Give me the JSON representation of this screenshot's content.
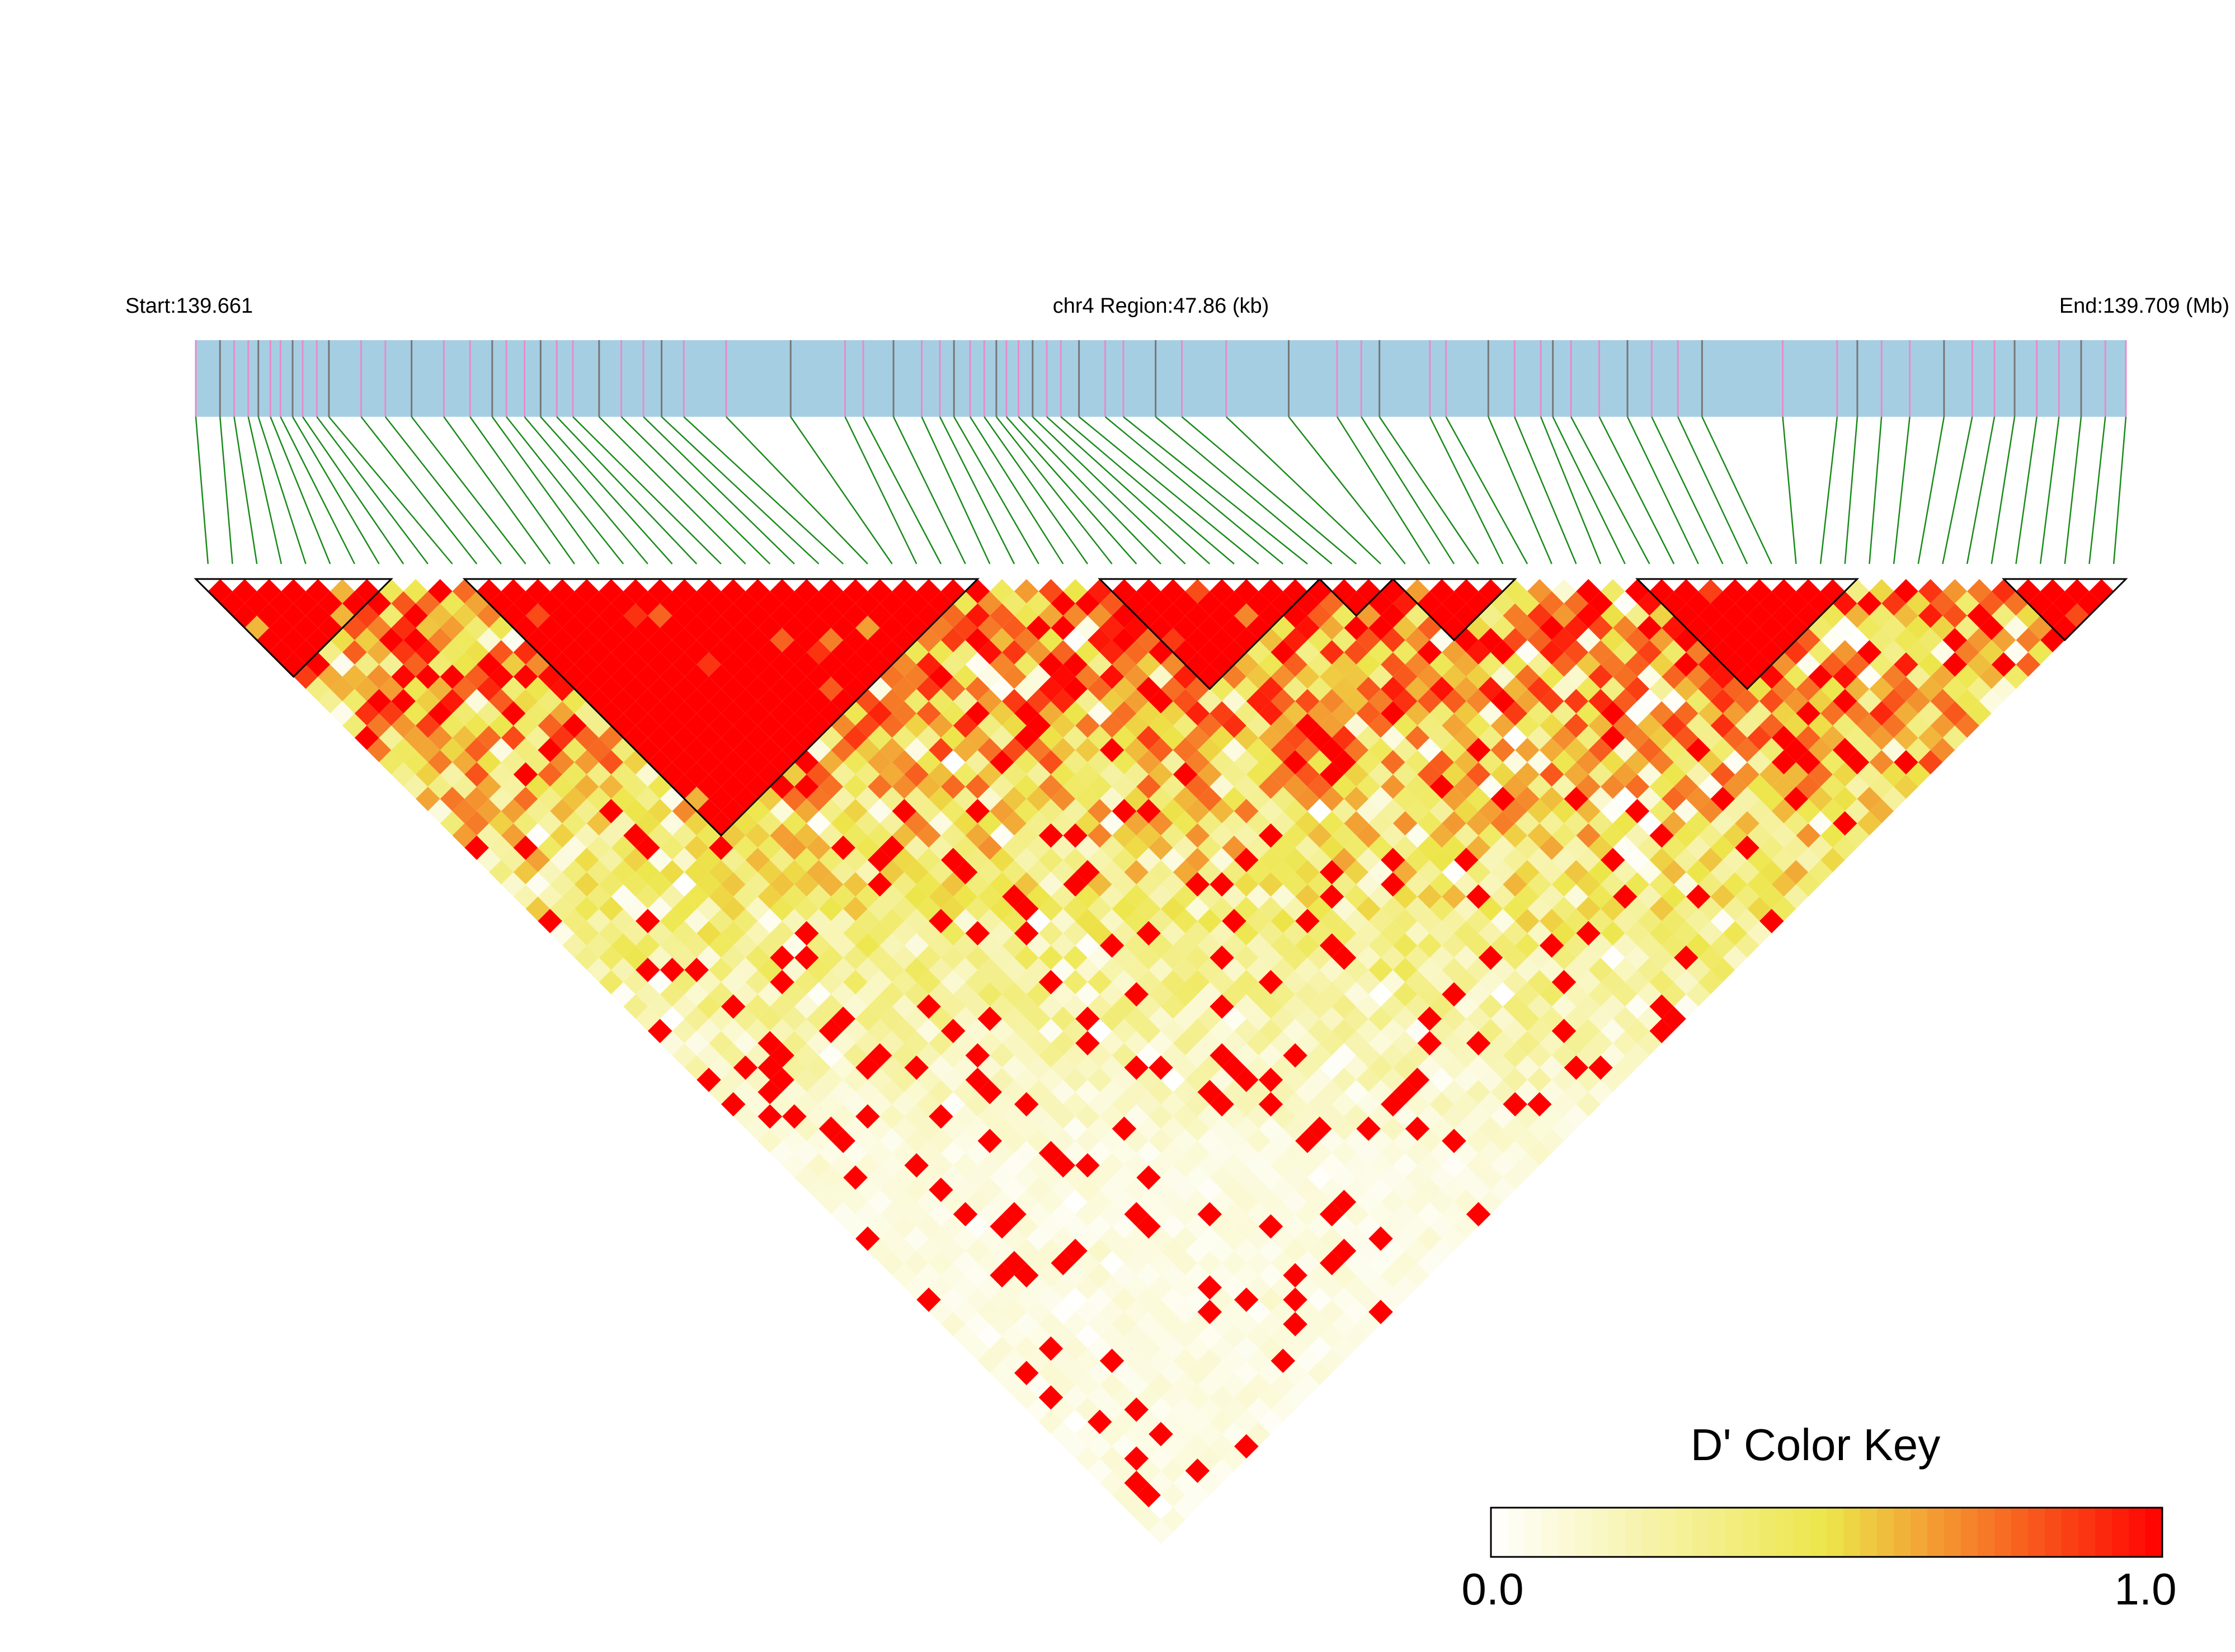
{
  "chart_data": {
    "type": "heatmap",
    "subtype": "linkage-disequilibrium-triangle",
    "metric": "D'",
    "header": {
      "start_label": "Start:139.661",
      "region_label": "chr4 Region:47.86 (kb)",
      "end_label": "End:139.709 (Mb)"
    },
    "region": {
      "chromosome": "chr4",
      "start_mb": 139.661,
      "end_mb": 139.709,
      "length_kb": 47.86
    },
    "snp_positions_kb": [
      0.0,
      0.6,
      0.95,
      1.3,
      1.55,
      1.85,
      2.1,
      2.4,
      2.65,
      3.0,
      3.3,
      4.1,
      4.7,
      5.35,
      6.15,
      6.8,
      7.35,
      7.7,
      8.15,
      8.55,
      8.95,
      9.35,
      10.0,
      10.55,
      11.1,
      11.55,
      12.1,
      13.15,
      14.75,
      16.1,
      16.55,
      17.3,
      18.0,
      18.45,
      18.8,
      19.2,
      19.55,
      19.85,
      20.1,
      20.4,
      20.75,
      21.1,
      21.45,
      21.9,
      22.55,
      23.0,
      23.8,
      24.45,
      25.55,
      27.1,
      28.3,
      28.9,
      29.35,
      30.6,
      31.0,
      32.05,
      32.7,
      33.35,
      33.65,
      34.1,
      34.8,
      35.5,
      36.1,
      36.75,
      37.35,
      39.35,
      40.7,
      41.2,
      41.8,
      42.5,
      43.35,
      44.05,
      44.6,
      45.1,
      45.65,
      46.2,
      46.75,
      47.35,
      47.86
    ],
    "ld_blocks": [
      {
        "first": 0,
        "last": 7
      },
      {
        "first": 11,
        "last": 31
      },
      {
        "first": 37,
        "last": 45
      },
      {
        "first": 46,
        "last": 48
      },
      {
        "first": 49,
        "last": 53
      },
      {
        "first": 59,
        "last": 67
      },
      {
        "first": 74,
        "last": 78
      }
    ],
    "legend": {
      "title": "D' Color Key",
      "min_label": "0.0",
      "max_label": "1.0",
      "range": [
        0,
        1
      ],
      "placement": "bottom-right"
    },
    "colors": {
      "track_fill": "#a6cee3",
      "snp_tick_pink": "#e68ccb",
      "snp_tick_gray": "#777777",
      "connector": "#1a8a1a",
      "scale_low": "#ffffff",
      "scale_mid": "#ede64a",
      "scale_high": "#ff0000",
      "block_outline": "#000000"
    }
  }
}
